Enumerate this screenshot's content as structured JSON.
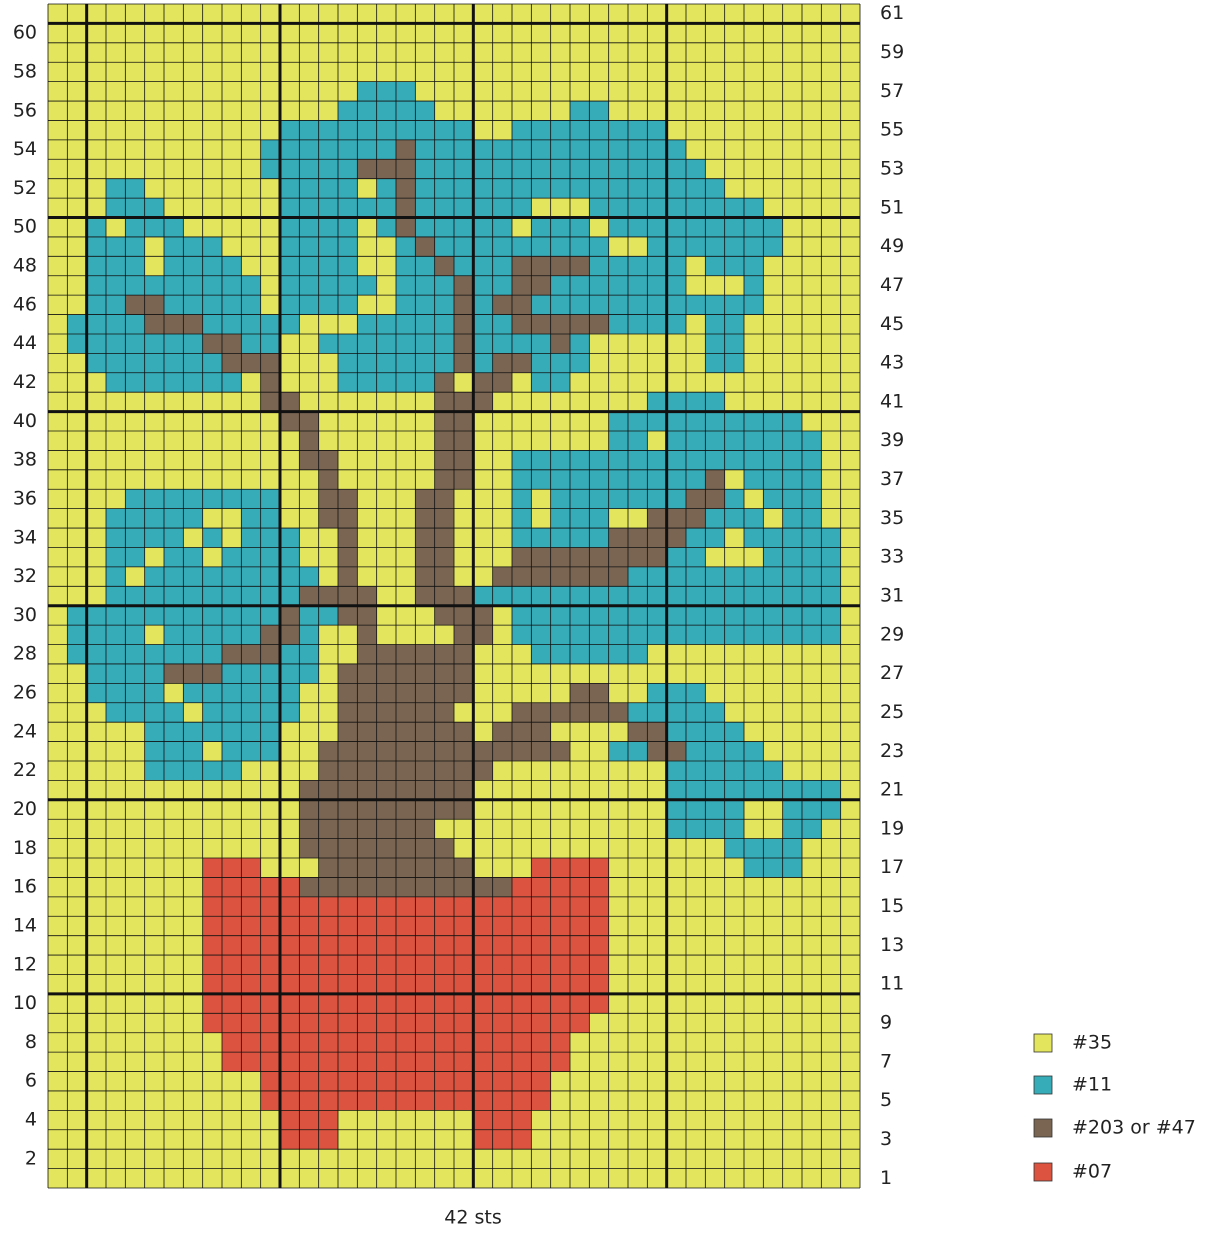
{
  "row_numbers_left": [
    60,
    58,
    56,
    54,
    52,
    50,
    48,
    46,
    44,
    42,
    40,
    38,
    36,
    34,
    32,
    30,
    28,
    26,
    24,
    22,
    20,
    18,
    16,
    14,
    12,
    10,
    8,
    6,
    4,
    2
  ],
  "row_numbers_right": [
    61,
    59,
    57,
    55,
    53,
    51,
    49,
    47,
    45,
    43,
    41,
    39,
    37,
    35,
    33,
    31,
    29,
    27,
    25,
    23,
    21,
    19,
    17,
    15,
    13,
    11,
    9,
    7,
    5,
    3,
    1
  ],
  "width_label": "42 sts",
  "legend": [
    {
      "label": "#35",
      "color": "#e3e55d"
    },
    {
      "label": "#11",
      "color": "#36acb8"
    },
    {
      "label": "#203 or #47",
      "color": "#7a6552"
    },
    {
      "label": "#07",
      "color": "#dc5440"
    }
  ]
}
